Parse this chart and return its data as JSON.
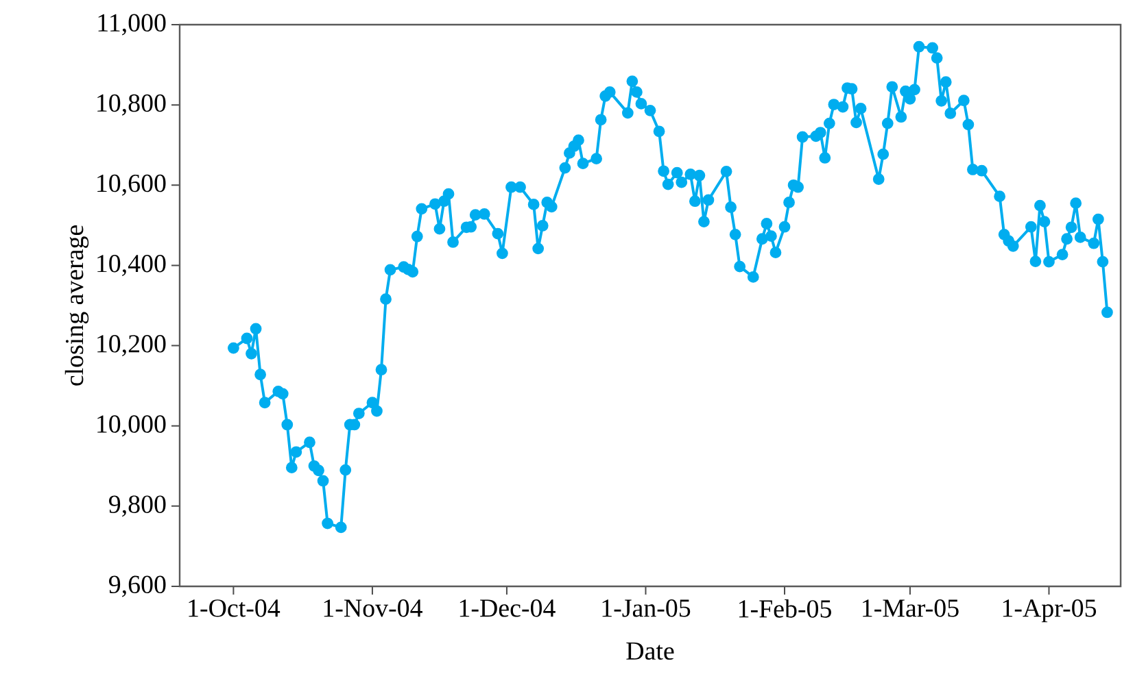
{
  "chart_data": {
    "type": "line",
    "xlabel": "Date",
    "ylabel": "closing average",
    "x": [
      "2004-10-01",
      "2004-10-04",
      "2004-10-05",
      "2004-10-06",
      "2004-10-07",
      "2004-10-08",
      "2004-10-11",
      "2004-10-12",
      "2004-10-13",
      "2004-10-14",
      "2004-10-15",
      "2004-10-18",
      "2004-10-19",
      "2004-10-20",
      "2004-10-21",
      "2004-10-22",
      "2004-10-25",
      "2004-10-26",
      "2004-10-27",
      "2004-10-28",
      "2004-10-29",
      "2004-11-01",
      "2004-11-02",
      "2004-11-03",
      "2004-11-04",
      "2004-11-05",
      "2004-11-08",
      "2004-11-09",
      "2004-11-10",
      "2004-11-11",
      "2004-11-12",
      "2004-11-15",
      "2004-11-16",
      "2004-11-17",
      "2004-11-18",
      "2004-11-19",
      "2004-11-22",
      "2004-11-23",
      "2004-11-24",
      "2004-11-26",
      "2004-11-29",
      "2004-11-30",
      "2004-12-02",
      "2004-12-04",
      "2004-12-07",
      "2004-12-08",
      "2004-12-09",
      "2004-12-10",
      "2004-12-11",
      "2004-12-14",
      "2004-12-15",
      "2004-12-16",
      "2004-12-17",
      "2004-12-18",
      "2004-12-21",
      "2004-12-22",
      "2004-12-23",
      "2004-12-24",
      "2004-12-28",
      "2004-12-29",
      "2004-12-30",
      "2004-12-31",
      "2005-01-02",
      "2005-01-04",
      "2005-01-05",
      "2005-01-06",
      "2005-01-08",
      "2005-01-09",
      "2005-01-11",
      "2005-01-12",
      "2005-01-13",
      "2005-01-14",
      "2005-01-15",
      "2005-01-19",
      "2005-01-20",
      "2005-01-21",
      "2005-01-22",
      "2005-01-25",
      "2005-01-27",
      "2005-01-28",
      "2005-01-29",
      "2005-01-30",
      "2005-02-01",
      "2005-02-02",
      "2005-02-03",
      "2005-02-04",
      "2005-02-05",
      "2005-02-08",
      "2005-02-09",
      "2005-02-10",
      "2005-02-11",
      "2005-02-12",
      "2005-02-14",
      "2005-02-15",
      "2005-02-16",
      "2005-02-17",
      "2005-02-18",
      "2005-02-22",
      "2005-02-23",
      "2005-02-24",
      "2005-02-25",
      "2005-02-27",
      "2005-02-28",
      "2005-03-01",
      "2005-03-02",
      "2005-03-03",
      "2005-03-06",
      "2005-03-07",
      "2005-03-08",
      "2005-03-09",
      "2005-03-10",
      "2005-03-13",
      "2005-03-14",
      "2005-03-15",
      "2005-03-17",
      "2005-03-21",
      "2005-03-22",
      "2005-03-23",
      "2005-03-24",
      "2005-03-28",
      "2005-03-29",
      "2005-03-30",
      "2005-03-31",
      "2005-04-01",
      "2005-04-04",
      "2005-04-05",
      "2005-04-06",
      "2005-04-07",
      "2005-04-08",
      "2005-04-11",
      "2005-04-12",
      "2005-04-13",
      "2005-04-14"
    ],
    "series": [
      {
        "color": "#00adef",
        "values": [
          10194,
          10218,
          10180,
          10242,
          10128,
          10058,
          10086,
          10080,
          10003,
          9896,
          9935,
          9959,
          9900,
          9889,
          9863,
          9757,
          9747,
          9890,
          10003,
          10003,
          10031,
          10058,
          10037,
          10140,
          10316,
          10389,
          10396,
          10390,
          10384,
          10472,
          10541,
          10553,
          10491,
          10560,
          10578,
          10458,
          10495,
          10496,
          10526,
          10528,
          10479,
          10430,
          10595,
          10595,
          10552,
          10442,
          10499,
          10557,
          10546,
          10643,
          10680,
          10697,
          10712,
          10654,
          10666,
          10763,
          10822,
          10832,
          10780,
          10859,
          10832,
          10803,
          10786,
          10734,
          10635,
          10602,
          10631,
          10607,
          10627,
          10560,
          10624,
          10509,
          10563,
          10634,
          10545,
          10477,
          10397,
          10371,
          10466,
          10504,
          10473,
          10432,
          10496,
          10557,
          10600,
          10595,
          10720,
          10722,
          10731,
          10668,
          10754,
          10801,
          10795,
          10842,
          10840,
          10756,
          10791,
          10615,
          10677,
          10754,
          10845,
          10770,
          10834,
          10815,
          10838,
          10945,
          10942,
          10917,
          10810,
          10857,
          10779,
          10811,
          10751,
          10639,
          10636,
          10572,
          10477,
          10461,
          10448,
          10496,
          10410,
          10549,
          10509,
          10409,
          10427,
          10466,
          10495,
          10555,
          10470,
          10455,
          10515,
          10409,
          10283
        ]
      }
    ],
    "xlim": [
      "2004-09-19",
      "2005-04-17"
    ],
    "xticks": [
      {
        "value": "2004-10-01",
        "label": "1-Oct-04"
      },
      {
        "value": "2004-11-01",
        "label": "1-Nov-04"
      },
      {
        "value": "2004-12-01",
        "label": "1-Dec-04"
      },
      {
        "value": "2005-01-01",
        "label": "1-Jan-05"
      },
      {
        "value": "2005-02-01",
        "label": "1-Feb-05"
      },
      {
        "value": "2005-03-01",
        "label": "1-Mar-05"
      },
      {
        "value": "2005-04-01",
        "label": "1-Apr-05"
      }
    ],
    "ylim": [
      9600,
      11000
    ],
    "yticks": [
      {
        "value": 9600,
        "label": "9,600"
      },
      {
        "value": 9800,
        "label": "9,800"
      },
      {
        "value": 10000,
        "label": "10,000"
      },
      {
        "value": 10200,
        "label": "10,200"
      },
      {
        "value": 10400,
        "label": "10,400"
      },
      {
        "value": 10600,
        "label": "10,600"
      },
      {
        "value": 10800,
        "label": "10,800"
      },
      {
        "value": 11000,
        "label": "11,000"
      }
    ],
    "marker": "circle",
    "line_style": "solid"
  }
}
